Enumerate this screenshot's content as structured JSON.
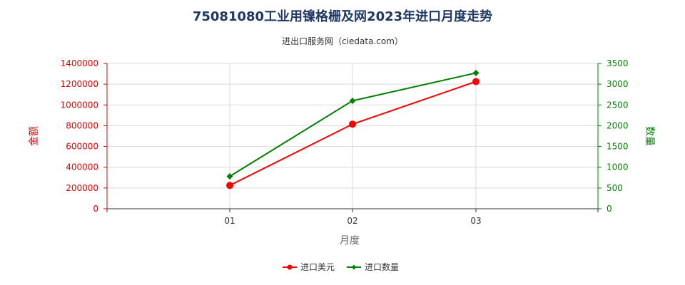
{
  "chart_data": {
    "type": "line",
    "title": "75081080工业用镍格栅及网2023年进口月度走势",
    "subtitle": "进出口服务网（ciedata.com）",
    "xlabel": "月度",
    "ylabel_left": "金额",
    "ylabel_right": "数量",
    "categories": [
      "01",
      "02",
      "03"
    ],
    "ylim_left": [
      0,
      1400000
    ],
    "ylim_right": [
      0,
      3500
    ],
    "left_ticks": [
      "0",
      "200000",
      "400000",
      "600000",
      "800000",
      "1000000",
      "1200000",
      "1400000"
    ],
    "right_ticks": [
      "0",
      "500",
      "1000",
      "1500",
      "2000",
      "2500",
      "3000",
      "3500"
    ],
    "grid": true,
    "legend_position": "bottom",
    "series": [
      {
        "name": "进口美元",
        "axis": "left",
        "color": "#ff0000",
        "marker": "circle",
        "values": [
          225000,
          815000,
          1225000
        ]
      },
      {
        "name": "进口数量",
        "axis": "right",
        "color": "#008000",
        "marker": "diamond",
        "values": [
          780,
          2600,
          3270
        ]
      }
    ]
  }
}
